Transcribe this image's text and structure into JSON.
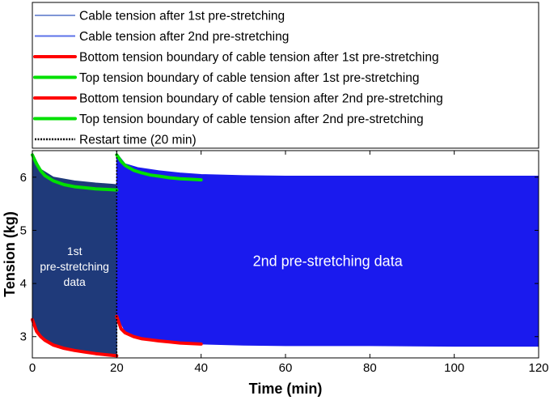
{
  "chart_data": {
    "type": "line",
    "title": "",
    "xlabel": "Time (min)",
    "ylabel": "Tension (kg)",
    "xlim": [
      0,
      120
    ],
    "ylim": [
      2.6,
      6.5
    ],
    "xticks": [
      0,
      20,
      40,
      60,
      80,
      100,
      120
    ],
    "yticks": [
      3,
      4,
      5,
      6
    ],
    "grid": false,
    "legend_position": "top",
    "restart_time": 20,
    "bands": [
      {
        "name": "Cable tension after 1st pre-stretching",
        "color": "#1f3a7a",
        "x_start": 0,
        "x_end": 20,
        "upper": [
          [
            0,
            6.45
          ],
          [
            2,
            6.15
          ],
          [
            5,
            6.0
          ],
          [
            10,
            5.93
          ],
          [
            15,
            5.89
          ],
          [
            20,
            5.86
          ]
        ],
        "lower": [
          [
            0,
            3.35
          ],
          [
            2,
            3.0
          ],
          [
            5,
            2.85
          ],
          [
            10,
            2.74
          ],
          [
            15,
            2.68
          ],
          [
            20,
            2.64
          ]
        ]
      },
      {
        "name": "Cable tension after 2nd pre-stretching",
        "color": "#1a1aee",
        "x_start": 20,
        "x_end": 120,
        "upper": [
          [
            20,
            6.45
          ],
          [
            22,
            6.25
          ],
          [
            25,
            6.18
          ],
          [
            30,
            6.12
          ],
          [
            35,
            6.08
          ],
          [
            40,
            6.05
          ],
          [
            50,
            6.03
          ],
          [
            60,
            6.02
          ],
          [
            80,
            6.02
          ],
          [
            100,
            6.02
          ],
          [
            120,
            6.02
          ]
        ],
        "lower": [
          [
            20,
            3.4
          ],
          [
            22,
            3.1
          ],
          [
            25,
            3.0
          ],
          [
            30,
            2.93
          ],
          [
            35,
            2.89
          ],
          [
            40,
            2.86
          ],
          [
            50,
            2.84
          ],
          [
            60,
            2.83
          ],
          [
            80,
            2.83
          ],
          [
            100,
            2.82
          ],
          [
            120,
            2.82
          ]
        ]
      }
    ],
    "boundaries": [
      {
        "name": "Bottom tension boundary of cable tension after 1st pre-stretching",
        "color": "#ff0000",
        "x": [
          0,
          1,
          2,
          3,
          5,
          7.5,
          10,
          12.5,
          15,
          17.5,
          20
        ],
        "y": [
          3.32,
          3.1,
          3.0,
          2.93,
          2.84,
          2.78,
          2.74,
          2.71,
          2.68,
          2.66,
          2.64
        ]
      },
      {
        "name": "Top tension boundary of cable tension after 1st pre-stretching",
        "color": "#00e000",
        "x": [
          0,
          1,
          2,
          3,
          5,
          7.5,
          10,
          12.5,
          15,
          17.5,
          20
        ],
        "y": [
          6.42,
          6.25,
          6.12,
          6.03,
          5.93,
          5.86,
          5.82,
          5.8,
          5.78,
          5.77,
          5.76
        ]
      },
      {
        "name": "Bottom tension boundary of cable tension after 2nd pre-stretching",
        "color": "#ff0000",
        "x": [
          20,
          21,
          22,
          24,
          26,
          28,
          30,
          32.5,
          35,
          37.5,
          40
        ],
        "y": [
          3.38,
          3.15,
          3.07,
          3.0,
          2.96,
          2.94,
          2.92,
          2.9,
          2.88,
          2.87,
          2.86
        ]
      },
      {
        "name": "Top tension boundary of cable tension after 2nd pre-stretching",
        "color": "#00e000",
        "x": [
          20,
          21,
          22,
          24,
          26,
          28,
          30,
          32.5,
          35,
          37.5,
          40
        ],
        "y": [
          6.42,
          6.3,
          6.22,
          6.13,
          6.08,
          6.04,
          6.02,
          5.99,
          5.97,
          5.96,
          5.95
        ]
      }
    ],
    "legend": [
      {
        "label": "Cable tension after 1st pre-stretching",
        "color": "#7f96d6",
        "style": "solid-thin"
      },
      {
        "label": "Cable tension after 2nd pre-stretching",
        "color": "#5c72e8",
        "style": "solid-thin"
      },
      {
        "label": "Bottom tension boundary of cable tension after 1st pre-stretching",
        "color": "#ff0000",
        "style": "solid-thick"
      },
      {
        "label": "Top tension boundary of cable tension after 1st pre-stretching",
        "color": "#00e000",
        "style": "solid-thick"
      },
      {
        "label": "Bottom tension boundary of cable tension after 2nd pre-stretching",
        "color": "#ff0000",
        "style": "solid-thick"
      },
      {
        "label": "Top tension boundary of cable tension after 2nd pre-stretching",
        "color": "#00e000",
        "style": "solid-thick"
      },
      {
        "label": "Restart time (20 min)",
        "color": "#000000",
        "style": "dotted"
      }
    ],
    "annotations": [
      {
        "lines": [
          "1st",
          "pre-stretching",
          "data"
        ],
        "x": 10,
        "y": 4.3
      },
      {
        "lines": [
          "2nd pre-stretching data"
        ],
        "x": 70,
        "y": 4.4
      }
    ]
  }
}
